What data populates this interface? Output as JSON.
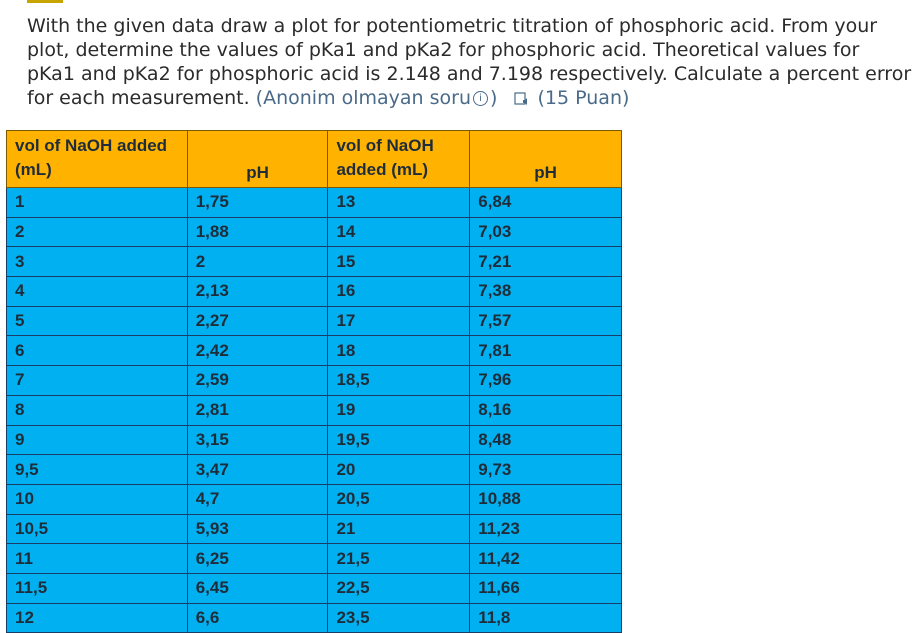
{
  "question": {
    "text": "With the given data draw a plot for potentiometric titration of phosphoric acid. From your plot, determine the values of pKa1 and pKa2 for phosphoric acid. Theoretical values for pKa1 and pKa2 for phosphoric acid is 2.148 and 7.198 respectively. Calculate a percent error for each measurement.",
    "note_prefix": "(Anonim olmayan soru",
    "note_suffix": ")",
    "info_glyph": "i",
    "points": "(15 Puan)"
  },
  "icons": {
    "info": "info-icon",
    "speaker": "speaker-icon"
  },
  "colors": {
    "header_bg": "#ffb300",
    "cell_bg": "#00b0f0",
    "accent": "#c8a400"
  },
  "table": {
    "headers": [
      "vol of NaOH added (mL)",
      "pH",
      "vol of NaOH added (mL)",
      "pH"
    ],
    "rows": [
      [
        "1",
        "1,75",
        "13",
        "6,84"
      ],
      [
        "2",
        "1,88",
        "14",
        "7,03"
      ],
      [
        "3",
        "2",
        "15",
        "7,21"
      ],
      [
        "4",
        "2,13",
        "16",
        "7,38"
      ],
      [
        "5",
        "2,27",
        "17",
        "7,57"
      ],
      [
        "6",
        "2,42",
        "18",
        "7,81"
      ],
      [
        "7",
        "2,59",
        "18,5",
        "7,96"
      ],
      [
        "8",
        "2,81",
        "19",
        "8,16"
      ],
      [
        "9",
        "3,15",
        "19,5",
        "8,48"
      ],
      [
        "9,5",
        "3,47",
        "20",
        "9,73"
      ],
      [
        "10",
        "4,7",
        "20,5",
        "10,88"
      ],
      [
        "10,5",
        "5,93",
        "21",
        "11,23"
      ],
      [
        "11",
        "6,25",
        "21,5",
        "11,42"
      ],
      [
        "11,5",
        "6,45",
        "22,5",
        "11,66"
      ],
      [
        "12",
        "6,6",
        "23,5",
        "11,8"
      ]
    ]
  }
}
